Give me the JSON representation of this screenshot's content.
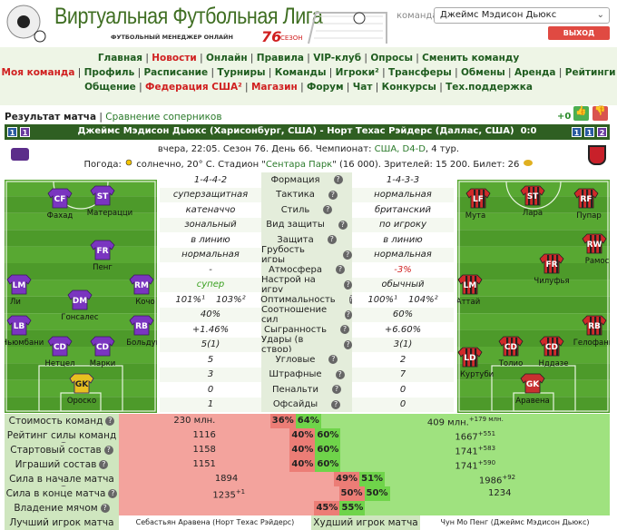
{
  "header": {
    "title": "Виртуальная Футбольная Лига",
    "subtitle": "ФУТБОЛЬНЫЙ МЕНЕДЖЕР ОНЛАЙН",
    "season_number": "76",
    "season_word": "СЕЗОН",
    "team_label": "команда",
    "team_select": "Джеймс Мэдисон Дьюкс",
    "logout": "ВЫХОД"
  },
  "nav": [
    [
      {
        "text": "Главная"
      },
      {
        "text": "Новости",
        "highlight": true
      },
      {
        "text": "Онлайн"
      },
      {
        "text": "Правила"
      },
      {
        "text": "VIP-клуб"
      },
      {
        "text": "Опросы"
      },
      {
        "text": "Сменить команду"
      }
    ],
    [
      {
        "text": "Моя команда",
        "highlight": true
      },
      {
        "text": "Профиль"
      },
      {
        "text": "Расписание"
      },
      {
        "text": "Турниры"
      },
      {
        "text": "Команды"
      },
      {
        "text": "Игроки²"
      },
      {
        "text": "Трансферы"
      },
      {
        "text": "Обмены"
      },
      {
        "text": "Аренда"
      },
      {
        "text": "Рейтинги"
      }
    ],
    [
      {
        "text": "Общение"
      },
      {
        "text": "Федерация США²",
        "highlight": true
      },
      {
        "text": "Магазин",
        "highlight": true
      },
      {
        "text": "Форум"
      },
      {
        "text": "Чат"
      },
      {
        "text": "Конкурсы"
      },
      {
        "text": "Тех.поддержка"
      }
    ]
  ],
  "tabs": {
    "active": "Результат матча",
    "other": "Сравнение соперников",
    "rating": "+0"
  },
  "match": {
    "home_icons": [
      "1",
      "1"
    ],
    "title": "Джеймс Мэдисон Дьюкс (Харисонбург, США) - Норт Техас Рэйдерс (Даллас, США)",
    "score": "0:0",
    "away_icons": [
      "1",
      "1",
      "2"
    ],
    "info": "вчера, 22:05. Сезон 76. День 66. Чемпионат:",
    "championship": "США, D4-D",
    "tour": ", 4 тур.",
    "weather_label": "Погода:",
    "weather": "солнечно, 20° C. Стадион \"",
    "stadium": "Сентара Парк",
    "attendance": "\" (16 000). Зрителей: 15 200. Билет: 26"
  },
  "home_players": [
    {
      "pos": "CF",
      "name": "Фахад"
    },
    {
      "pos": "ST",
      "name": "Матерацци"
    },
    {
      "pos": "FR",
      "name": "Пенг"
    },
    {
      "pos": "LM",
      "name": "Ли"
    },
    {
      "pos": "DM",
      "name": "Гонсалес"
    },
    {
      "pos": "RM",
      "name": "Кочо"
    },
    {
      "pos": "LB",
      "name": "Ньюмбани"
    },
    {
      "pos": "CD",
      "name": "Нетцел"
    },
    {
      "pos": "CD",
      "name": "Марки"
    },
    {
      "pos": "RB",
      "name": "Больдук"
    },
    {
      "pos": "GK",
      "name": "Ороско"
    }
  ],
  "away_players": [
    {
      "pos": "LF",
      "name": "Мута"
    },
    {
      "pos": "ST",
      "name": "Лара"
    },
    {
      "pos": "RF",
      "name": "Пупар"
    },
    {
      "pos": "RW",
      "name": "Рамос"
    },
    {
      "pos": "FR",
      "name": "Чилуфья"
    },
    {
      "pos": "LM",
      "name": "Аттай"
    },
    {
      "pos": "RB",
      "name": "Гелофани"
    },
    {
      "pos": "LD",
      "name": "А. Куртуби"
    },
    {
      "pos": "CD",
      "name": "Толио"
    },
    {
      "pos": "CD",
      "name": "Нддазе"
    },
    {
      "pos": "GK",
      "name": "Аравена"
    }
  ],
  "stats": [
    {
      "left": [
        "1-4-4-2"
      ],
      "label": "Формация",
      "right": [
        "1-4-3-3"
      ]
    },
    {
      "left": [
        "суперзащитная"
      ],
      "label": "Тактика",
      "right": [
        "нормальная"
      ]
    },
    {
      "left": [
        "катеначчо"
      ],
      "label": "Стиль",
      "right": [
        "британский"
      ]
    },
    {
      "left": [
        "зональный"
      ],
      "label": "Вид защиты",
      "right": [
        "по игроку"
      ]
    },
    {
      "left": [
        "в линию"
      ],
      "label": "Защита",
      "right": [
        "в линию"
      ]
    },
    {
      "left": [
        "нормальная"
      ],
      "label": "Грубость игры",
      "right": [
        "нормальная"
      ]
    },
    {
      "left": [
        "-"
      ],
      "label": "Атмосфера",
      "right": [
        "-3%"
      ],
      "right_color": "#d02020"
    },
    {
      "left": [
        "супер"
      ],
      "label": "Настрой на игру",
      "right": [
        "обычный"
      ],
      "left_color": "#3aa020"
    },
    {
      "left": [
        "101%¹",
        "103%²"
      ],
      "label": "Оптимальность",
      "right": [
        "100%¹",
        "104%²"
      ]
    },
    {
      "left": [
        "40%"
      ],
      "label": "Соотношение сил",
      "right": [
        "60%"
      ]
    },
    {
      "left": [
        "+1.46%"
      ],
      "label": "Сыгранность",
      "right": [
        "+6.60%"
      ]
    },
    {
      "left": [
        "5(1)"
      ],
      "label": "Удары (в створ)",
      "right": [
        "3(1)"
      ]
    },
    {
      "left": [
        "5"
      ],
      "label": "Угловые",
      "right": [
        "2"
      ]
    },
    {
      "left": [
        "3"
      ],
      "label": "Штрафные",
      "right": [
        "7"
      ]
    },
    {
      "left": [
        "0"
      ],
      "label": "Пенальти",
      "right": [
        "0"
      ]
    },
    {
      "left": [
        "1"
      ],
      "label": "Офсайды",
      "right": [
        "0"
      ]
    }
  ],
  "comparison": [
    {
      "label": "Стоимость команд",
      "left": "230 млн.",
      "left_pct": {
        "value": 36,
        "label": "36%"
      },
      "right_pct": {
        "value": 64,
        "label": "64%"
      },
      "right": "409 млн.",
      "right_sup": "+179 млн."
    },
    {
      "label": "Рейтинг силы команд",
      "left": "1116",
      "left_pct": {
        "value": 40,
        "label": "40%"
      },
      "right_pct": {
        "value": 60,
        "label": "60%"
      },
      "right": "1667",
      "right_sup": "+551"
    },
    {
      "label": "Стартовый состав",
      "left": "1158",
      "left_pct": {
        "value": 40,
        "label": "40%"
      },
      "right_pct": {
        "value": 60,
        "label": "60%"
      },
      "right": "1741",
      "right_sup": "+583"
    },
    {
      "label": "Играший состав",
      "left": "1151",
      "left_pct": {
        "value": 40,
        "label": "40%"
      },
      "right_pct": {
        "value": 60,
        "label": "60%"
      },
      "right": "1741",
      "right_sup": "+590"
    },
    {
      "label": "Сила в начале матча",
      "left": "1894",
      "left_pct": {
        "value": 49,
        "label": "49%"
      },
      "right_pct": {
        "value": 51,
        "label": "51%"
      },
      "right": "1986",
      "right_sup": "+92"
    },
    {
      "label": "Сила в конце матча",
      "left": "1235",
      "left_sup": "+1",
      "left_pct": {
        "value": 50,
        "label": "50%"
      },
      "right_pct": {
        "value": 50,
        "label": "50%"
      },
      "right": "1234"
    },
    {
      "label": "Владение мячом",
      "left_pct": {
        "value": 45,
        "label": "45%"
      },
      "right_pct": {
        "value": 55,
        "label": "55%"
      }
    }
  ],
  "players_of_match": {
    "best_label": "Лучший игрок матча",
    "best": "Себастьян Аравена (Норт Техас Рэйдерс)",
    "worst_label": "Худший игрок матча",
    "worst": "Чун Мо Пенг (Джеймс Мэдисон Дьюкс)"
  }
}
